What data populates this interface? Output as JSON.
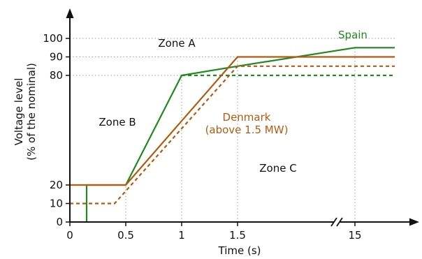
{
  "chart_data": {
    "type": "line",
    "xlabel": "Time (s)",
    "ylabel": [
      "Voltage level",
      "(% of the nominal)"
    ],
    "x_ticks": [
      "0",
      "0.5",
      "1",
      "1.5",
      "15"
    ],
    "y_ticks": [
      "0",
      "10",
      "20",
      "80",
      "90",
      "100"
    ],
    "x_axis_break": "between 1.5 and 15 s",
    "grid": "dotted reference lines at key points",
    "zones": [
      "Zone A",
      "Zone B",
      "Zone C"
    ],
    "series": [
      {
        "name": "Spain",
        "style": "solid",
        "color": "#1e8a1e",
        "points": [
          [
            0.15,
            0
          ],
          [
            0.15,
            20
          ],
          [
            0.5,
            20
          ],
          [
            1.0,
            80
          ],
          [
            1.5,
            85
          ],
          [
            15,
            95
          ],
          [
            16,
            95
          ]
        ]
      },
      {
        "name": "Spain",
        "style": "dashed",
        "color": "#1e8a1e",
        "points": [
          [
            1.0,
            80
          ],
          [
            16,
            80
          ]
        ]
      },
      {
        "name": "Denmark (above 1.5 MW)",
        "style": "solid",
        "color": "#b35a10",
        "points": [
          [
            0.0,
            20
          ],
          [
            0.5,
            20
          ],
          [
            1.5,
            90
          ],
          [
            16,
            90
          ]
        ]
      },
      {
        "name": "Denmark (above 1.5 MW)",
        "style": "dashed",
        "color": "#b35a10",
        "points": [
          [
            0.0,
            10
          ],
          [
            0.4,
            10
          ],
          [
            1.5,
            85
          ],
          [
            16,
            85
          ]
        ]
      }
    ],
    "labels": {
      "spain": "Spain",
      "denmark_line1": "Denmark",
      "denmark_line2": "(above 1.5 MW)"
    }
  }
}
